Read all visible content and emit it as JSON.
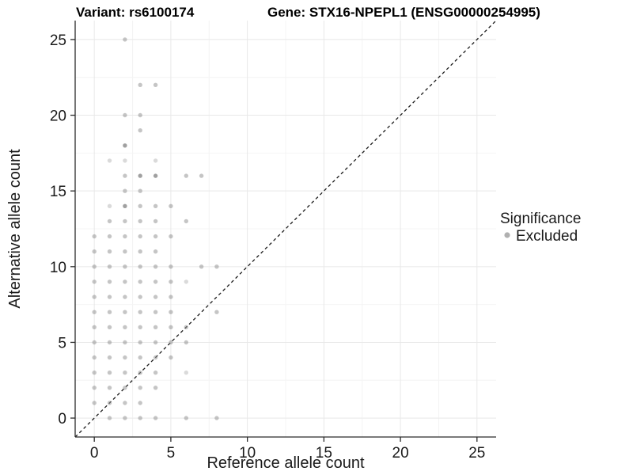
{
  "titles": {
    "variant": "Variant: rs6100174",
    "gene": "Gene: STX16-NPEPL1 (ENSG00000254995)"
  },
  "legend": {
    "title": "Significance",
    "items": [
      {
        "label": "Excluded",
        "color": "#9c9c9c"
      }
    ],
    "position": "right"
  },
  "colors": {
    "point": "#8f8f8f",
    "axis_line": "#2b2b2b",
    "grid_major": "#e8e8e8",
    "grid_minor": "#f4f4f4",
    "identity_line": "#1a1a1a",
    "background": "#ffffff"
  },
  "chart_data": {
    "type": "scatter",
    "title_left": "Variant: rs6100174",
    "title_right": "Gene: STX16-NPEPL1 (ENSG00000254995)",
    "xlabel": "Reference allele count",
    "ylabel": "Alternative allele count",
    "xlim": [
      0,
      25
    ],
    "ylim": [
      0,
      25
    ],
    "x_ticks": [
      0,
      5,
      10,
      15,
      20,
      25
    ],
    "y_ticks": [
      0,
      5,
      10,
      15,
      20,
      25
    ],
    "grid": true,
    "minor_grid_step": 2.5,
    "identity_line": {
      "show": true,
      "style": "dashed",
      "equation": "y = x"
    },
    "legend_position": "right",
    "series": [
      {
        "name": "Excluded",
        "rows": [
          {
            "y": 0,
            "x": [
              1,
              2,
              3,
              4,
              6,
              8
            ]
          },
          {
            "y": 1,
            "x": [
              0,
              1,
              2,
              3
            ]
          },
          {
            "y": 2,
            "x": [
              0,
              1,
              2,
              3,
              4
            ]
          },
          {
            "y": 3,
            "x": [
              0,
              1,
              2,
              3,
              4,
              6
            ]
          },
          {
            "y": 4,
            "x": [
              0,
              1,
              2,
              3,
              4,
              5
            ]
          },
          {
            "y": 5,
            "x": [
              0,
              1,
              2,
              3,
              4,
              5,
              6
            ]
          },
          {
            "y": 6,
            "x": [
              0,
              1,
              2,
              3,
              4,
              5,
              6
            ]
          },
          {
            "y": 7,
            "x": [
              0,
              1,
              2,
              3,
              4,
              5,
              8
            ]
          },
          {
            "y": 8,
            "x": [
              0,
              1,
              2,
              3,
              4,
              5
            ]
          },
          {
            "y": 9,
            "x": [
              0,
              1,
              2,
              3,
              4,
              5,
              6
            ]
          },
          {
            "y": 10,
            "x": [
              0,
              1,
              2,
              3,
              4,
              5,
              7,
              8
            ]
          },
          {
            "y": 11,
            "x": [
              0,
              1,
              2,
              3,
              4
            ]
          },
          {
            "y": 12,
            "x": [
              0,
              1,
              2,
              3,
              4,
              5
            ]
          },
          {
            "y": 13,
            "x": [
              1,
              2,
              3,
              4,
              6
            ]
          },
          {
            "y": 14,
            "x": [
              1,
              2,
              3,
              4,
              5
            ]
          },
          {
            "y": 15,
            "x": [
              2,
              3
            ]
          },
          {
            "y": 16,
            "x": [
              2,
              3,
              4,
              6,
              7
            ]
          },
          {
            "y": 17,
            "x": [
              1,
              2,
              4
            ]
          },
          {
            "y": 18,
            "x": [
              2
            ]
          },
          {
            "y": 19,
            "x": [
              3
            ]
          },
          {
            "y": 20,
            "x": [
              2,
              3
            ]
          },
          {
            "y": 22,
            "x": [
              3,
              4
            ]
          },
          {
            "y": 25,
            "x": [
              2
            ]
          }
        ],
        "dark_points": [
          [
            2,
            18
          ],
          [
            3,
            16
          ],
          [
            4,
            16
          ],
          [
            2,
            14
          ]
        ],
        "light_points": [
          [
            1,
            17
          ],
          [
            2,
            17
          ],
          [
            4,
            17
          ],
          [
            6,
            9
          ],
          [
            6,
            3
          ],
          [
            1,
            14
          ]
        ]
      }
    ]
  }
}
